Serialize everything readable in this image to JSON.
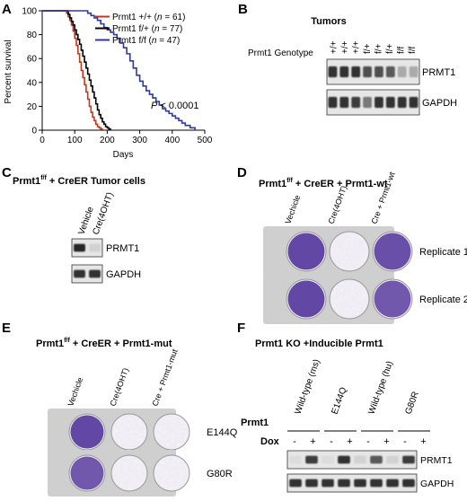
{
  "panels": {
    "A": {
      "letter": "A",
      "chart_data": {
        "type": "line",
        "title": "",
        "xlabel": "Days",
        "ylabel": "Percent survival",
        "xlim": [
          0,
          500
        ],
        "ylim": [
          0,
          100
        ],
        "xticks": [
          "0",
          "100",
          "200",
          "300",
          "400",
          "500"
        ],
        "yticks": [
          "0",
          "20",
          "40",
          "60",
          "80",
          "100"
        ],
        "grid": false,
        "legend_position": "top-left",
        "annotation": "P < 0.0001",
        "series": [
          {
            "name": "Prmt1 +/+ (n = 61)",
            "color": "#c0391e",
            "x": [
              0,
              75,
              80,
              85,
              90,
              95,
              100,
              105,
              110,
              115,
              120,
              125,
              130,
              135,
              140,
              145,
              150,
              155,
              160,
              165,
              170,
              175,
              180,
              185
            ],
            "y": [
              100,
              98,
              95,
              92,
              88,
              83,
              77,
              71,
              64,
              57,
              50,
              44,
              38,
              32,
              26,
              20,
              15,
              11,
              8,
              5,
              3,
              2,
              1,
              0
            ]
          },
          {
            "name": "Prmt1 f/+ (n = 77)",
            "color": "#000000",
            "x": [
              0,
              80,
              85,
              90,
              95,
              100,
              105,
              110,
              115,
              120,
              125,
              130,
              135,
              140,
              145,
              150,
              155,
              160,
              165,
              170,
              175,
              180,
              185,
              190,
              195,
              200,
              205,
              210
            ],
            "y": [
              100,
              97,
              94,
              91,
              88,
              84,
              80,
              76,
              72,
              67,
              62,
              57,
              52,
              47,
              42,
              37,
              32,
              27,
              22,
              17,
              13,
              10,
              7,
              5,
              3,
              2,
              1,
              0
            ]
          },
          {
            "name": "Prmt1 f/f (n = 47)",
            "color": "#2e3a9e",
            "x": [
              0,
              140,
              150,
              160,
              170,
              180,
              190,
              200,
              210,
              220,
              230,
              240,
              250,
              260,
              270,
              280,
              290,
              300,
              310,
              320,
              330,
              340,
              350,
              360,
              370,
              380,
              390,
              400,
              410,
              420,
              430,
              440,
              455,
              470
            ],
            "y": [
              100,
              98,
              96,
              94,
              92,
              89,
              86,
              84,
              82,
              80,
              77,
              73,
              69,
              64,
              58,
              52,
              46,
              41,
              37,
              33,
              30,
              27,
              24,
              21,
              18,
              16,
              14,
              12,
              10,
              8,
              6,
              4,
              2,
              0
            ]
          }
        ]
      }
    },
    "B": {
      "letter": "B",
      "title": "Tumors",
      "genotype_label": "Prmt1 Genotype",
      "lanes": [
        "+/+",
        "+/+",
        "+/+",
        "f/+",
        "f/+",
        "f/+",
        "f/f",
        "f/f"
      ],
      "bands": [
        {
          "label": "PRMT1",
          "intensity": [
            0.9,
            0.9,
            0.9,
            0.75,
            0.75,
            0.7,
            0.3,
            0.3
          ]
        },
        {
          "label": "GAPDH",
          "intensity": [
            0.9,
            0.9,
            0.85,
            0.55,
            0.9,
            0.9,
            0.9,
            0.9
          ]
        }
      ]
    },
    "C": {
      "letter": "C",
      "title_main": "Prmt1",
      "title_sup": "f/f",
      "title_rest": " + CreER Tumor cells",
      "lanes": [
        "Vehicle",
        "Cre(4OHT)"
      ],
      "bands": [
        {
          "label": "PRMT1",
          "intensity": [
            0.95,
            0.1
          ]
        },
        {
          "label": "GAPDH",
          "intensity": [
            0.9,
            0.9
          ]
        }
      ]
    },
    "D": {
      "letter": "D",
      "title_main": "Prmt1",
      "title_sup": "f/f",
      "title_rest": " + CreER + Prmt1-wt",
      "columns": [
        "Vechicle",
        "Cre(4OHT)",
        "Cre + Prmt1-wt"
      ],
      "rows": [
        "Replicate 1",
        "Replicate 2"
      ],
      "stain_density": [
        [
          0.95,
          0.35,
          0.9
        ],
        [
          0.95,
          0.4,
          0.85
        ]
      ],
      "stain_color": "#5a3ea0"
    },
    "E": {
      "letter": "E",
      "title_main": "Prmt1",
      "title_sup": "f/f",
      "title_rest": " + CreER + Prmt1-mut",
      "columns": [
        "Vechicle",
        "Cre(4OHT)",
        "Cre + Prmt1-mut"
      ],
      "rows": [
        "E144Q",
        "G80R"
      ],
      "stain_density": [
        [
          0.95,
          0.45,
          0.45
        ],
        [
          0.85,
          0.4,
          0.45
        ]
      ],
      "stain_color": "#5a3ea0"
    },
    "F": {
      "letter": "F",
      "title": "Prmt1 KO +Inducible Prmt1",
      "row_label_prmt1": "Prmt1",
      "row_label_dox": "Dox",
      "groups": [
        "Wild-type (ms)",
        "E144Q",
        "Wild-type (hu)",
        "G80R"
      ],
      "dox": [
        "-",
        "+",
        "-",
        "+",
        "-",
        "+",
        "-",
        "+"
      ],
      "bands": [
        {
          "label": "PRMT1",
          "intensity": [
            0.05,
            0.85,
            0.05,
            0.9,
            0.1,
            0.7,
            0.1,
            0.85
          ]
        },
        {
          "label": "GAPDH",
          "intensity": [
            0.9,
            0.9,
            0.9,
            0.9,
            0.9,
            0.9,
            0.9,
            0.9
          ]
        }
      ]
    }
  }
}
